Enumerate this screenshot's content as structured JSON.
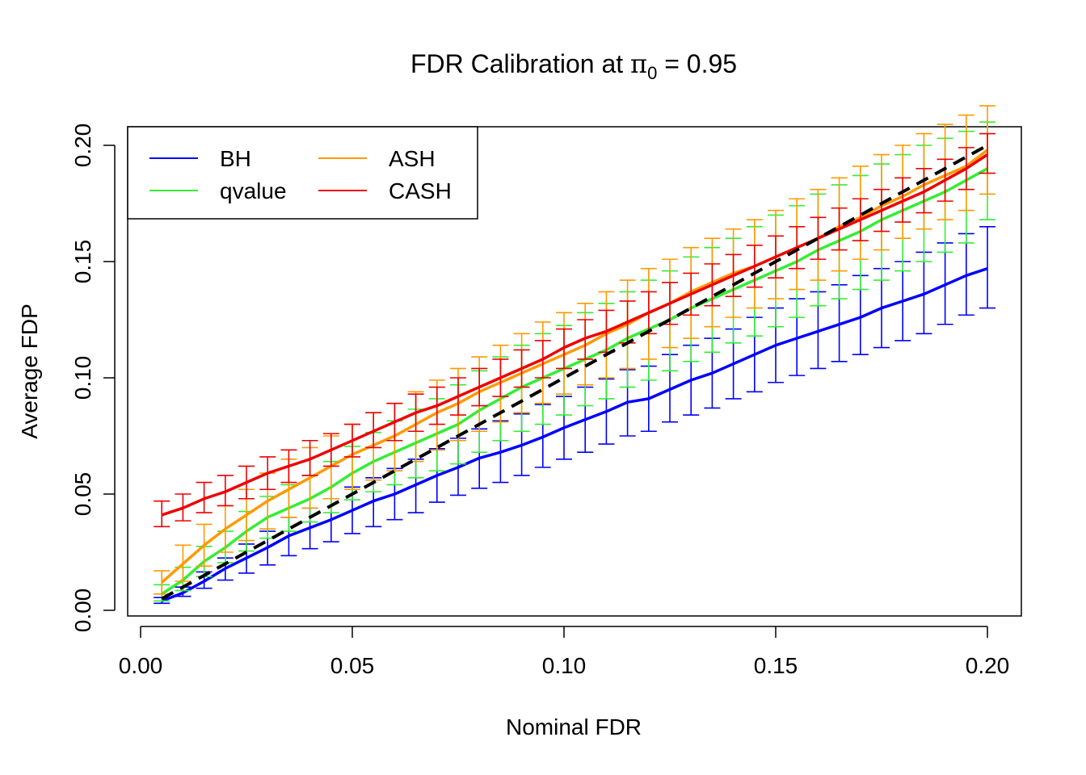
{
  "chart_data": {
    "type": "line",
    "title_prefix": "FDR Calibration at ",
    "title_symbol": "π",
    "title_subscript": "0",
    "title_suffix": " = 0.95",
    "xlabel": "Nominal FDR",
    "ylabel": "Average FDP",
    "xlim": [
      0,
      0.2
    ],
    "ylim": [
      0,
      0.2
    ],
    "x_ticks": [
      "0.00",
      "0.05",
      "0.10",
      "0.15",
      "0.20"
    ],
    "y_ticks": [
      "0.00",
      "0.05",
      "0.10",
      "0.15",
      "0.20"
    ],
    "grid": false,
    "legend_position": "top-left",
    "reference_line": {
      "from": [
        0.005,
        0.005
      ],
      "to": [
        0.2,
        0.2
      ],
      "color": "#000000",
      "style": "dashed"
    },
    "x_start": 0.005,
    "x_step": 0.005,
    "series": [
      {
        "name": "BH",
        "color": "#0000ff",
        "values": [
          0.004,
          0.0075,
          0.0125,
          0.018,
          0.0225,
          0.027,
          0.032,
          0.0355,
          0.039,
          0.043,
          0.047,
          0.05,
          0.054,
          0.058,
          0.0615,
          0.0655,
          0.068,
          0.071,
          0.0745,
          0.0785,
          0.082,
          0.0855,
          0.0895,
          0.091,
          0.095,
          0.099,
          0.102,
          0.106,
          0.11,
          0.114,
          0.117,
          0.12,
          0.123,
          0.126,
          0.13,
          0.133,
          0.136,
          0.14,
          0.144,
          0.147
        ],
        "err_low": [
          0.003,
          0.006,
          0.0095,
          0.013,
          0.016,
          0.0195,
          0.0235,
          0.0265,
          0.0295,
          0.033,
          0.036,
          0.039,
          0.042,
          0.0465,
          0.0495,
          0.0525,
          0.055,
          0.058,
          0.0615,
          0.065,
          0.068,
          0.0715,
          0.075,
          0.077,
          0.081,
          0.084,
          0.087,
          0.091,
          0.094,
          0.098,
          0.101,
          0.104,
          0.107,
          0.11,
          0.113,
          0.116,
          0.119,
          0.123,
          0.127,
          0.13
        ],
        "err_high": [
          0.0055,
          0.01,
          0.0165,
          0.0225,
          0.0285,
          0.034,
          0.04,
          0.044,
          0.048,
          0.053,
          0.057,
          0.061,
          0.065,
          0.0695,
          0.074,
          0.078,
          0.0815,
          0.0845,
          0.0885,
          0.092,
          0.096,
          0.0995,
          0.1035,
          0.105,
          0.11,
          0.114,
          0.117,
          0.121,
          0.126,
          0.13,
          0.134,
          0.137,
          0.14,
          0.144,
          0.147,
          0.15,
          0.154,
          0.158,
          0.162,
          0.165
        ]
      },
      {
        "name": "qvalue",
        "color": "#33ee33",
        "values": [
          0.007,
          0.013,
          0.021,
          0.027,
          0.034,
          0.04,
          0.044,
          0.048,
          0.053,
          0.059,
          0.064,
          0.068,
          0.072,
          0.076,
          0.08,
          0.086,
          0.091,
          0.096,
          0.1,
          0.104,
          0.108,
          0.112,
          0.117,
          0.121,
          0.125,
          0.13,
          0.134,
          0.138,
          0.142,
          0.146,
          0.15,
          0.155,
          0.159,
          0.163,
          0.168,
          0.172,
          0.176,
          0.18,
          0.185,
          0.19
        ],
        "err_low": [
          0.004,
          0.0085,
          0.0145,
          0.0205,
          0.0255,
          0.031,
          0.034,
          0.038,
          0.042,
          0.0475,
          0.051,
          0.054,
          0.057,
          0.06,
          0.063,
          0.068,
          0.073,
          0.077,
          0.08,
          0.084,
          0.088,
          0.091,
          0.096,
          0.099,
          0.103,
          0.107,
          0.111,
          0.115,
          0.118,
          0.122,
          0.126,
          0.131,
          0.134,
          0.138,
          0.142,
          0.146,
          0.15,
          0.154,
          0.158,
          0.168
        ],
        "err_high": [
          0.011,
          0.0185,
          0.0275,
          0.034,
          0.0425,
          0.049,
          0.054,
          0.058,
          0.064,
          0.0705,
          0.0765,
          0.0815,
          0.0865,
          0.091,
          0.097,
          0.103,
          0.109,
          0.114,
          0.119,
          0.1225,
          0.128,
          0.132,
          0.137,
          0.142,
          0.146,
          0.152,
          0.156,
          0.16,
          0.165,
          0.17,
          0.174,
          0.179,
          0.183,
          0.187,
          0.192,
          0.196,
          0.2,
          0.203,
          0.206,
          0.21
        ]
      },
      {
        "name": "ASH",
        "color": "#ff9900",
        "values": [
          0.012,
          0.02,
          0.028,
          0.035,
          0.041,
          0.047,
          0.052,
          0.057,
          0.062,
          0.067,
          0.071,
          0.075,
          0.08,
          0.085,
          0.089,
          0.094,
          0.098,
          0.102,
          0.106,
          0.11,
          0.114,
          0.119,
          0.123,
          0.128,
          0.132,
          0.137,
          0.141,
          0.145,
          0.148,
          0.152,
          0.156,
          0.16,
          0.165,
          0.169,
          0.174,
          0.178,
          0.183,
          0.187,
          0.191,
          0.198
        ],
        "err_low": [
          0.007,
          0.0125,
          0.019,
          0.025,
          0.03,
          0.035,
          0.04,
          0.044,
          0.048,
          0.052,
          0.056,
          0.06,
          0.064,
          0.069,
          0.073,
          0.077,
          0.081,
          0.085,
          0.089,
          0.093,
          0.097,
          0.1,
          0.104,
          0.108,
          0.113,
          0.117,
          0.122,
          0.126,
          0.13,
          0.134,
          0.138,
          0.142,
          0.146,
          0.151,
          0.155,
          0.16,
          0.164,
          0.168,
          0.172,
          0.179
        ],
        "err_high": [
          0.017,
          0.028,
          0.037,
          0.045,
          0.052,
          0.059,
          0.065,
          0.07,
          0.075,
          0.08,
          0.085,
          0.089,
          0.094,
          0.099,
          0.104,
          0.109,
          0.114,
          0.119,
          0.124,
          0.128,
          0.132,
          0.137,
          0.142,
          0.147,
          0.151,
          0.156,
          0.16,
          0.164,
          0.168,
          0.172,
          0.177,
          0.181,
          0.186,
          0.191,
          0.196,
          0.2,
          0.205,
          0.209,
          0.213,
          0.217
        ]
      },
      {
        "name": "CASH",
        "color": "#ee0000",
        "values": [
          0.041,
          0.044,
          0.048,
          0.051,
          0.055,
          0.059,
          0.062,
          0.065,
          0.069,
          0.073,
          0.077,
          0.081,
          0.085,
          0.088,
          0.092,
          0.096,
          0.1,
          0.104,
          0.108,
          0.113,
          0.117,
          0.12,
          0.124,
          0.128,
          0.132,
          0.136,
          0.14,
          0.144,
          0.148,
          0.152,
          0.156,
          0.16,
          0.164,
          0.168,
          0.172,
          0.176,
          0.18,
          0.185,
          0.19,
          0.196
        ],
        "err_low": [
          0.036,
          0.0385,
          0.042,
          0.045,
          0.048,
          0.052,
          0.055,
          0.058,
          0.062,
          0.066,
          0.07,
          0.073,
          0.077,
          0.08,
          0.084,
          0.088,
          0.092,
          0.096,
          0.1,
          0.104,
          0.108,
          0.111,
          0.115,
          0.119,
          0.123,
          0.127,
          0.131,
          0.135,
          0.139,
          0.143,
          0.147,
          0.151,
          0.155,
          0.159,
          0.163,
          0.167,
          0.171,
          0.176,
          0.181,
          0.188
        ],
        "err_high": [
          0.047,
          0.05,
          0.055,
          0.058,
          0.062,
          0.066,
          0.069,
          0.073,
          0.076,
          0.08,
          0.085,
          0.089,
          0.093,
          0.096,
          0.1,
          0.104,
          0.108,
          0.112,
          0.116,
          0.121,
          0.125,
          0.129,
          0.133,
          0.137,
          0.141,
          0.145,
          0.149,
          0.153,
          0.157,
          0.161,
          0.165,
          0.169,
          0.173,
          0.177,
          0.181,
          0.186,
          0.19,
          0.194,
          0.199,
          0.205
        ]
      }
    ]
  }
}
